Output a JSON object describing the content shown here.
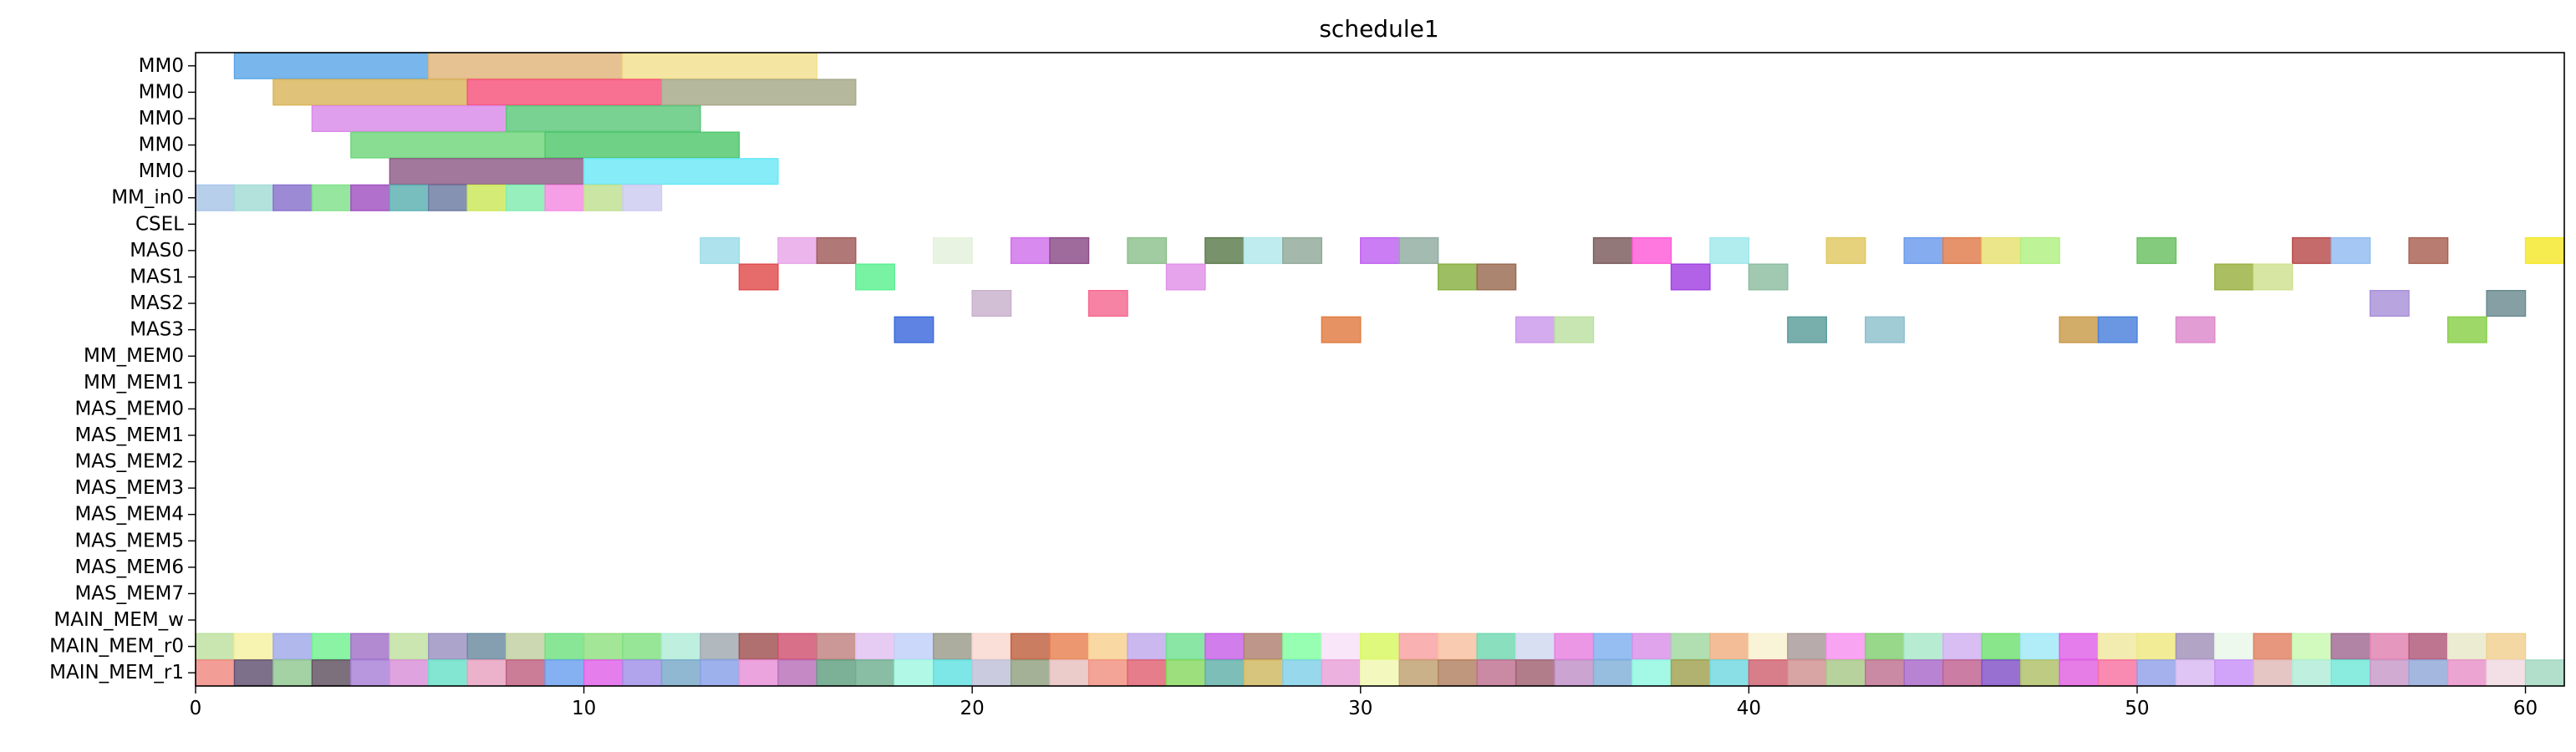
{
  "chart_data": {
    "type": "gantt",
    "title": "schedule1",
    "xlabel": "",
    "ylabel": "",
    "xlim": [
      0,
      61
    ],
    "grid": false,
    "x_ticks": [
      0,
      10,
      20,
      30,
      40,
      50,
      60
    ],
    "lanes": [
      "MM0",
      "MM0",
      "MM0",
      "MM0",
      "MM0",
      "MM_in0",
      "CSEL",
      "MAS0",
      "MAS1",
      "MAS2",
      "MAS3",
      "MM_MEM0",
      "MM_MEM1",
      "MAS_MEM0",
      "MAS_MEM1",
      "MAS_MEM2",
      "MAS_MEM3",
      "MAS_MEM4",
      "MAS_MEM5",
      "MAS_MEM6",
      "MAS_MEM7",
      "MAIN_MEM_w",
      "MAIN_MEM_r0",
      "MAIN_MEM_r1"
    ],
    "tasks": [
      {
        "lane": 0,
        "start": 1,
        "end": 6,
        "color": "#5aa6e8"
      },
      {
        "lane": 0,
        "start": 6,
        "end": 11,
        "color": "#e0b47a"
      },
      {
        "lane": 0,
        "start": 11,
        "end": 16,
        "color": "#f2e08e"
      },
      {
        "lane": 1,
        "start": 2,
        "end": 7,
        "color": "#d9b45a"
      },
      {
        "lane": 1,
        "start": 7,
        "end": 12,
        "color": "#f7507a"
      },
      {
        "lane": 1,
        "start": 12,
        "end": 17,
        "color": "#a6a888"
      },
      {
        "lane": 2,
        "start": 3,
        "end": 8,
        "color": "#d98ae8"
      },
      {
        "lane": 2,
        "start": 8,
        "end": 13,
        "color": "#5cc77a"
      },
      {
        "lane": 3,
        "start": 4,
        "end": 9,
        "color": "#6ed67a"
      },
      {
        "lane": 3,
        "start": 9,
        "end": 14,
        "color": "#4fc76a"
      },
      {
        "lane": 4,
        "start": 5,
        "end": 10,
        "color": "#8e5c86"
      },
      {
        "lane": 4,
        "start": 10,
        "end": 15,
        "color": "#6ae8f7"
      },
      {
        "lane": 5,
        "start": 0,
        "end": 1,
        "color": "#a8c4e8"
      },
      {
        "lane": 5,
        "start": 1,
        "end": 2,
        "color": "#a2dcd6"
      },
      {
        "lane": 5,
        "start": 2,
        "end": 3,
        "color": "#8870cc"
      },
      {
        "lane": 5,
        "start": 3,
        "end": 4,
        "color": "#80e08a"
      },
      {
        "lane": 5,
        "start": 4,
        "end": 5,
        "color": "#a050c0"
      },
      {
        "lane": 5,
        "start": 5,
        "end": 6,
        "color": "#5ab0b0"
      },
      {
        "lane": 5,
        "start": 6,
        "end": 7,
        "color": "#6a7aa0"
      },
      {
        "lane": 5,
        "start": 7,
        "end": 8,
        "color": "#cbe858"
      },
      {
        "lane": 5,
        "start": 8,
        "end": 9,
        "color": "#80ecb0"
      },
      {
        "lane": 5,
        "start": 9,
        "end": 10,
        "color": "#f58ae0"
      },
      {
        "lane": 5,
        "start": 10,
        "end": 11,
        "color": "#bfe090"
      },
      {
        "lane": 5,
        "start": 11,
        "end": 12,
        "color": "#cccbf0"
      },
      {
        "lane": 7,
        "start": 13,
        "end": 14,
        "color": "#9cdce8"
      },
      {
        "lane": 7,
        "start": 15,
        "end": 16,
        "color": "#e8a6e8"
      },
      {
        "lane": 7,
        "start": 16,
        "end": 17,
        "color": "#a05a5a"
      },
      {
        "lane": 7,
        "start": 19,
        "end": 20,
        "color": "#e3f2da"
      },
      {
        "lane": 7,
        "start": 21,
        "end": 22,
        "color": "#d070ec"
      },
      {
        "lane": 7,
        "start": 22,
        "end": 23,
        "color": "#8a4a86"
      },
      {
        "lane": 7,
        "start": 24,
        "end": 25,
        "color": "#8cbf8c"
      },
      {
        "lane": 7,
        "start": 26,
        "end": 27,
        "color": "#5a7a4a"
      },
      {
        "lane": 7,
        "start": 27,
        "end": 28,
        "color": "#b0e8ec"
      },
      {
        "lane": 7,
        "start": 28,
        "end": 29,
        "color": "#90aa9a"
      },
      {
        "lane": 7,
        "start": 30,
        "end": 31,
        "color": "#c060f0"
      },
      {
        "lane": 7,
        "start": 31,
        "end": 32,
        "color": "#90aca0"
      },
      {
        "lane": 7,
        "start": 36,
        "end": 37,
        "color": "#7a5a5a"
      },
      {
        "lane": 7,
        "start": 37,
        "end": 38,
        "color": "#ff5ad8"
      },
      {
        "lane": 7,
        "start": 39,
        "end": 40,
        "color": "#a0e8ec"
      },
      {
        "lane": 7,
        "start": 42,
        "end": 43,
        "color": "#e0c860"
      },
      {
        "lane": 7,
        "start": 44,
        "end": 45,
        "color": "#6a9aec"
      },
      {
        "lane": 7,
        "start": 45,
        "end": 46,
        "color": "#e07a4a"
      },
      {
        "lane": 7,
        "start": 46,
        "end": 47,
        "color": "#e8e070"
      },
      {
        "lane": 7,
        "start": 47,
        "end": 48,
        "color": "#b0f080"
      },
      {
        "lane": 7,
        "start": 50,
        "end": 51,
        "color": "#6ac060"
      },
      {
        "lane": 7,
        "start": 54,
        "end": 55,
        "color": "#b84a4a"
      },
      {
        "lane": 7,
        "start": 55,
        "end": 56,
        "color": "#90bcf0"
      },
      {
        "lane": 7,
        "start": 57,
        "end": 58,
        "color": "#a86050"
      },
      {
        "lane": 7,
        "start": 60,
        "end": 61,
        "color": "#f5e828"
      },
      {
        "lane": 8,
        "start": 14,
        "end": 15,
        "color": "#e04a4a"
      },
      {
        "lane": 8,
        "start": 17,
        "end": 18,
        "color": "#5af090"
      },
      {
        "lane": 8,
        "start": 25,
        "end": 26,
        "color": "#e090e8"
      },
      {
        "lane": 8,
        "start": 32,
        "end": 33,
        "color": "#88b040"
      },
      {
        "lane": 8,
        "start": 33,
        "end": 34,
        "color": "#9a6a50"
      },
      {
        "lane": 8,
        "start": 38,
        "end": 39,
        "color": "#a040e0"
      },
      {
        "lane": 8,
        "start": 40,
        "end": 41,
        "color": "#8cbca0"
      },
      {
        "lane": 8,
        "start": 52,
        "end": 53,
        "color": "#98b040"
      },
      {
        "lane": 8,
        "start": 53,
        "end": 54,
        "color": "#d0e090"
      },
      {
        "lane": 9,
        "start": 20,
        "end": 21,
        "color": "#c8b0cc"
      },
      {
        "lane": 9,
        "start": 23,
        "end": 24,
        "color": "#f56890"
      },
      {
        "lane": 9,
        "start": 56,
        "end": 57,
        "color": "#a890d8"
      },
      {
        "lane": 9,
        "start": 59,
        "end": 60,
        "color": "#6a8a90"
      },
      {
        "lane": 10,
        "start": 18,
        "end": 19,
        "color": "#3a68dc"
      },
      {
        "lane": 10,
        "start": 29,
        "end": 30,
        "color": "#e07a40"
      },
      {
        "lane": 10,
        "start": 34,
        "end": 35,
        "color": "#cc98ec"
      },
      {
        "lane": 10,
        "start": 35,
        "end": 36,
        "color": "#bce0a0"
      },
      {
        "lane": 10,
        "start": 41,
        "end": 42,
        "color": "#5a9c9a"
      },
      {
        "lane": 10,
        "start": 43,
        "end": 44,
        "color": "#8cc0cc"
      },
      {
        "lane": 10,
        "start": 48,
        "end": 49,
        "color": "#c89a48"
      },
      {
        "lane": 10,
        "start": 49,
        "end": 50,
        "color": "#4a80dc"
      },
      {
        "lane": 10,
        "start": 51,
        "end": 52,
        "color": "#dc88cc"
      },
      {
        "lane": 10,
        "start": 58,
        "end": 59,
        "color": "#88d048"
      }
    ],
    "row_palettes": {
      "MAIN_MEM_r0": [
        "#bde0a0",
        "#f5f0a0",
        "#a0a8e8",
        "#70f090",
        "#a070c8",
        "#c0e0a0",
        "#9a90c0",
        "#6a8aa0",
        "#c0d0a0",
        "#70e080",
        "#90e080",
        "#80e080",
        "#b0ecd8",
        "#a0a8b0",
        "#a05050",
        "#d05070",
        "#c08080",
        "#e0c0f0",
        "#c0d0f8",
        "#9a9a8a",
        "#f8d8d0",
        "#c06040",
        "#e88050",
        "#f8d090",
        "#c0a8ec",
        "#70e090",
        "#c860e8",
        "#b08070",
        "#80ffa0",
        "#f8e0f8",
        "#d8f860",
        "#f8a0a0",
        "#f8c0a0",
        "#70d8b0",
        "#d0d8f0",
        "#e880e0",
        "#80b0f0",
        "#d890e8",
        "#a0d8a0",
        "#f0b080",
        "#f8f0d0",
        "#a89898",
        "#f890f0",
        "#80d070",
        "#a8e8c8",
        "#d0b0f0",
        "#70e070",
        "#a0e8f8",
        "#e060e8",
        "#f0e8a0",
        "#f0e880",
        "#a090b8",
        "#e8f8e8",
        "#e08060",
        "#c8f8b0",
        "#a06890",
        "#e080b0",
        "#b05878",
        "#e8e8c8",
        "#f0d090"
      ],
      "MAIN_MEM_r1": [
        "#f08880",
        "#605070",
        "#90c890",
        "#605060",
        "#a880d8",
        "#d890d8",
        "#68e0c8",
        "#e8a0c0",
        "#c06080",
        "#6aa0f0",
        "#e060e8",
        "#a090e8",
        "#78a8c8",
        "#88a0e8",
        "#e890d8",
        "#b870b8",
        "#60a080",
        "#70b090",
        "#a0f8e0",
        "#60e0e0",
        "#c0c0d8",
        "#90a080",
        "#e8c0c0",
        "#f09080",
        "#e06070",
        "#88d860",
        "#60b0a8",
        "#d0b860",
        "#80d0e8",
        "#e8a0d8",
        "#f0f8b0",
        "#c0a070",
        "#b08060",
        "#c07090",
        "#a06070",
        "#c090c8",
        "#80b0d8",
        "#90f8e0",
        "#a0a050",
        "#70d8e0",
        "#d06070",
        "#d09090",
        "#a8c888",
        "#c07090",
        "#a868c8",
        "#c06090",
        "#8050c8",
        "#b0c068",
        "#e060e0",
        "#f870a0",
        "#90a0e8",
        "#d8b8f0",
        "#c890f8",
        "#e0b8b8",
        "#b0ecd8",
        "#70e8d8",
        "#c898c8",
        "#90a8d8",
        "#e890c8",
        "#f0d8e0",
        "#a0d8c0"
      ]
    }
  }
}
